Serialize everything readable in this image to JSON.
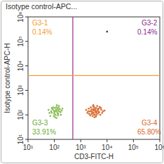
{
  "chart_data": {
    "type": "scatter",
    "title": "Isotype control-APC...",
    "x_label": "CD3-FITC-H",
    "y_label": "Isotype control-APC-H",
    "log": true,
    "xlim": [
      10,
      1000000
    ],
    "ylim": [
      10,
      1000000
    ],
    "xticks": [
      {
        "value": 10,
        "label": "10¹"
      },
      {
        "value": 100,
        "label": "10²"
      },
      {
        "value": 1000,
        "label": "10³"
      },
      {
        "value": 10000,
        "label": "10⁴"
      },
      {
        "value": 100000,
        "label": "10⁵"
      },
      {
        "value": 1000000,
        "label": "10⁶"
      }
    ],
    "yticks": [
      {
        "value": 10,
        "label": "10¹"
      },
      {
        "value": 100,
        "label": "10²"
      },
      {
        "value": 1000,
        "label": "10³"
      },
      {
        "value": 10000,
        "label": "10⁴"
      },
      {
        "value": 100000,
        "label": "10⁵"
      },
      {
        "value": 1000000,
        "label": "10⁶"
      }
    ],
    "gate_x": 500,
    "gate_x_color": "#9b2f8e",
    "gate_y": 4000,
    "gate_y_color": "#f0a030",
    "quadrants": {
      "names": [
        "G3-1",
        "G3-2",
        "G3-3",
        "G3-4"
      ],
      "values": [
        0.14,
        0.14,
        33.91,
        65.8
      ],
      "value_labels": [
        "0.14%",
        "0.14%",
        "33.91%",
        "65.80%"
      ],
      "colors": [
        "#f39c2e",
        "#8e2a8e",
        "#6aaa3a",
        "#d8692c"
      ]
    },
    "series": [
      {
        "color": "#8fc15f",
        "marker": "circle",
        "x": [
          80,
          95,
          110,
          130,
          150,
          70,
          120,
          140,
          100,
          160,
          90,
          115,
          135,
          75,
          105,
          125,
          145,
          85,
          170,
          100,
          60,
          190,
          110,
          130,
          95,
          150,
          120,
          80,
          140,
          105,
          175,
          65,
          200,
          125
        ],
        "values": [
          120,
          150,
          100,
          180,
          140,
          90,
          210,
          110,
          130,
          170,
          200,
          160,
          95,
          140,
          80,
          250,
          200,
          170,
          130,
          110,
          160,
          150,
          140,
          120,
          90,
          230,
          75,
          190,
          160,
          190,
          100,
          120,
          180,
          140
        ]
      },
      {
        "color": "#d9733a",
        "marker": "circle",
        "x": [
          2500,
          3000,
          3500,
          4000,
          2000,
          4500,
          2800,
          3200,
          5000,
          1800,
          3800,
          2600,
          6000,
          2200,
          3300,
          4200,
          2900,
          5500,
          3600,
          2400,
          7000,
          3100,
          1600,
          4800,
          2700,
          3900,
          5200,
          3400,
          2300,
          4400,
          3000,
          6500,
          2100,
          3700,
          4100,
          2850,
          5800,
          3350,
          1900,
          4600,
          3150,
          2550,
          8000,
          3750,
          2950
        ],
        "values": [
          140,
          120,
          160,
          100,
          180,
          150,
          90,
          210,
          130,
          120,
          190,
          110,
          160,
          140,
          80,
          230,
          170,
          100,
          130,
          200,
          140,
          150,
          160,
          180,
          130,
          120,
          210,
          100,
          95,
          170,
          250,
          120,
          110,
          145,
          135,
          125,
          190,
          175,
          140,
          115,
          105,
          165,
          150,
          85,
          220
        ]
      },
      {
        "color": "#444444",
        "marker": "circle",
        "x": [
          10000
        ],
        "values": [
          250000
        ]
      }
    ]
  }
}
